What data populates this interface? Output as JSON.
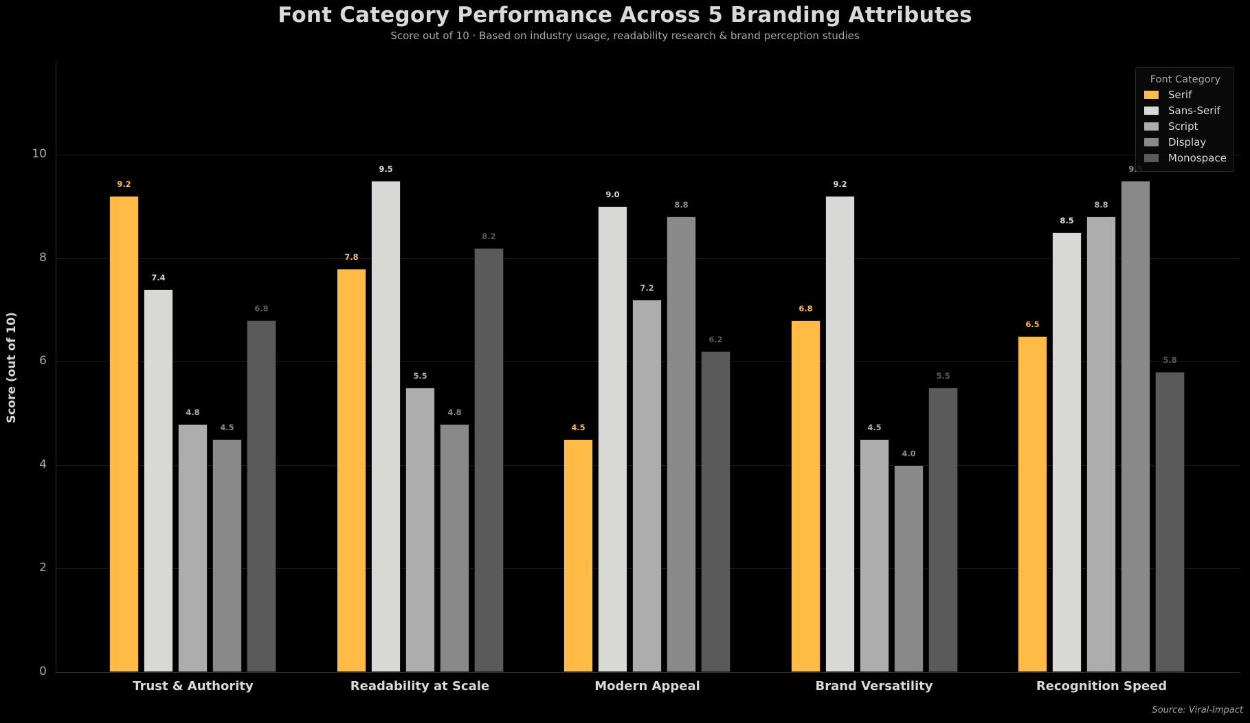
{
  "header": {
    "title": "Font Category Performance Across 5 Branding Attributes",
    "subtitle": "Score out of 10  ·  Based on industry usage, readability research & brand perception studies"
  },
  "axes": {
    "ylabel": "Score (out of 10)",
    "yticks": [
      "0",
      "2",
      "4",
      "6",
      "8",
      "10"
    ]
  },
  "legend": {
    "title": "Font Category",
    "items": [
      {
        "label": "Serif",
        "color": "#FFBB45"
      },
      {
        "label": "Sans-Serif",
        "color": "#D8D8D4"
      },
      {
        "label": "Script",
        "color": "#ADADAD"
      },
      {
        "label": "Display",
        "color": "#898989"
      },
      {
        "label": "Monospace",
        "color": "#5A5A5A"
      }
    ]
  },
  "footer": {
    "source": "Source: Viral-Impact"
  },
  "chart_data": {
    "type": "bar",
    "title": "Font Category Performance Across 5 Branding Attributes",
    "subtitle": "Score out of 10  ·  Based on industry usage, readability research & brand perception studies",
    "xlabel": "",
    "ylabel": "Score (out of 10)",
    "ylim": [
      0,
      11.8
    ],
    "yticks": [
      0,
      2,
      4,
      6,
      8,
      10
    ],
    "grid": true,
    "legend_position": "upper right",
    "legend_title": "Font Category",
    "categories": [
      "Trust & Authority",
      "Readability at Scale",
      "Modern Appeal",
      "Brand Versatility",
      "Recognition Speed"
    ],
    "series": [
      {
        "name": "Serif",
        "color": "#FFBB45",
        "label_color": "#FFBB45",
        "values": [
          9.2,
          7.8,
          4.5,
          6.8,
          6.5
        ]
      },
      {
        "name": "Sans-Serif",
        "color": "#D8D8D4",
        "label_color": "#D8D8D4",
        "values": [
          7.4,
          9.5,
          9.0,
          9.2,
          8.5
        ]
      },
      {
        "name": "Script",
        "color": "#ADADAD",
        "label_color": "#ADADAD",
        "values": [
          4.8,
          5.5,
          7.2,
          4.5,
          8.8
        ]
      },
      {
        "name": "Display",
        "color": "#898989",
        "label_color": "#898989",
        "values": [
          4.5,
          4.8,
          8.8,
          4.0,
          9.5
        ]
      },
      {
        "name": "Monospace",
        "color": "#5A5A5A",
        "label_color": "#5A5A5A",
        "values": [
          6.8,
          8.2,
          6.2,
          5.5,
          5.8
        ]
      }
    ],
    "source": "Source: Viral-Impact"
  }
}
